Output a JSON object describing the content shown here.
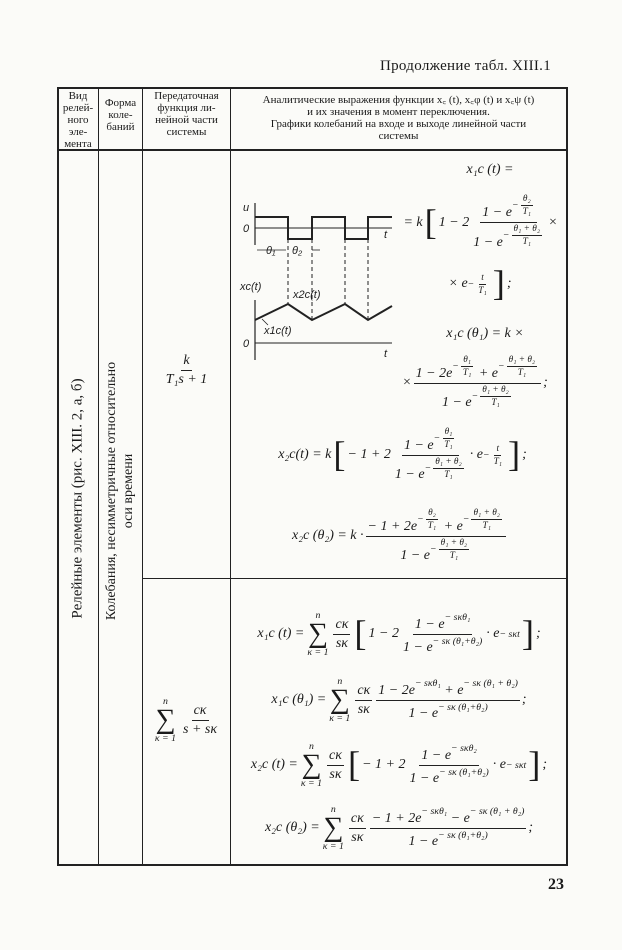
{
  "page": {
    "continuation_title": "Продолжение табл. XIII.1",
    "page_number": "23"
  },
  "table": {
    "headers": [
      "Вид релей-ного эле-мента",
      "Форма коле-баний",
      "Передаточная функция ли-нейной части системы",
      "Аналитические выражения функции x_c(t), x_cφ(t) и x_cψ(t) и их значения в момент переключения. Графики колебаний на входе и выходе линейной части системы"
    ],
    "header_lines": {
      "col1": [
        "Вид",
        "релей-",
        "ного",
        "эле-",
        "мента"
      ],
      "col2": [
        "Форма",
        "коле-",
        "баний"
      ],
      "col3": [
        "Передаточная",
        "функция ли-",
        "нейной части",
        "системы"
      ],
      "col4": [
        "Аналитические  выражения функции  x꜀ (t),  x꜀φ (t) и  x꜀ψ (t)",
        "и их значения в момент переключения.",
        "Графики колебаний на входе и выходе линейной части",
        "системы"
      ]
    },
    "element_type": "Релейные элементы (рис. XIII. 2, а, б)",
    "oscillation_form": [
      "Колебания, несимметричные относительно",
      "оси времени"
    ]
  },
  "graph": {
    "labels": {
      "u": "u",
      "zero_top": "0",
      "t_top": "t",
      "theta1": "θ₁",
      "theta2": "θ₂",
      "xc": "xc(t)",
      "x2c": "x2c(t)",
      "x1c": "x1c(t)",
      "zero_bottom": "0",
      "t_bottom": "t"
    }
  },
  "formulas": {
    "tf1": [
      {
        "f": [
          [
            "k"
          ],
          [
            "T₁s + 1"
          ]
        ]
      }
    ],
    "tf2": [
      {
        "sum": [
          "n",
          "κ = 1"
        ]
      },
      {
        "f": [
          [
            "cκ"
          ],
          [
            "s + sκ"
          ]
        ]
      }
    ],
    "f1a": [
      "x₁c (t) ="
    ],
    "f1b": [
      "= k",
      {
        "big": "["
      },
      "1 − 2 ",
      {
        "f": [
          [
            "1 − e",
            {
              "s": [
                "−",
                {
                  "f": [
                    [
                      "θ₂"
                    ],
                    [
                      "T₁"
                    ]
                  ]
                }
              ]
            }
          ],
          [
            "1 − e",
            {
              "s": [
                "−",
                {
                  "f": [
                    [
                      "θ₁ + θ₂"
                    ],
                    [
                      "T₁"
                    ]
                  ]
                }
              ]
            }
          ]
        ]
      },
      "×"
    ],
    "f1c": [
      "× e",
      {
        "s": [
          "−",
          {
            "f": [
              [
                "t"
              ],
              [
                "T₁"
              ]
            ]
          }
        ]
      },
      {
        "big": "]"
      },
      ";"
    ],
    "f2a": [
      "x₁c (θ₁) = k ×"
    ],
    "f2b": [
      "× ",
      {
        "f": [
          [
            "1 − 2e",
            {
              "s": [
                "−",
                {
                  "f": [
                    [
                      "θ₁"
                    ],
                    [
                      "T₁"
                    ]
                  ]
                }
              ]
            },
            " + e",
            {
              "s": [
                "−",
                {
                  "f": [
                    [
                      "θ₁ + θ₂"
                    ],
                    [
                      "T₁"
                    ]
                  ]
                }
              ]
            }
          ],
          [
            "1 − e",
            {
              "s": [
                "−",
                {
                  "f": [
                    [
                      "θ₁ + θ₂"
                    ],
                    [
                      "T₁"
                    ]
                  ]
                }
              ]
            }
          ]
        ]
      },
      " ;"
    ],
    "f3": [
      "x₂c(t) = k",
      {
        "big": "["
      },
      "− 1 + 2",
      {
        "f": [
          [
            "1 − e",
            {
              "s": [
                "−",
                {
                  "f": [
                    [
                      "θ₁"
                    ],
                    [
                      "T₁"
                    ]
                  ]
                }
              ]
            }
          ],
          [
            "1 − e",
            {
              "s": [
                "−",
                {
                  "f": [
                    [
                      "θ₁ + θ₂"
                    ],
                    [
                      "T₁"
                    ]
                  ]
                }
              ]
            }
          ]
        ]
      },
      " · e",
      {
        "s": [
          "−",
          {
            "f": [
              [
                "t"
              ],
              [
                "T₁"
              ]
            ]
          }
        ]
      },
      {
        "big": "]"
      },
      " ;"
    ],
    "f4": [
      "x₂c (θ₂) = k · ",
      {
        "f": [
          [
            "− 1 + 2e",
            {
              "s": [
                "−",
                {
                  "f": [
                    [
                      "θ₂"
                    ],
                    [
                      "T₁"
                    ]
                  ]
                }
              ]
            },
            " + e",
            {
              "s": [
                "−",
                {
                  "f": [
                    [
                      "θ₁ + θ₂"
                    ],
                    [
                      "T₁"
                    ]
                  ]
                }
              ]
            }
          ],
          [
            "1 − e",
            {
              "s": [
                "−",
                {
                  "f": [
                    [
                      "θ₁ + θ₂"
                    ],
                    [
                      "T₁"
                    ]
                  ]
                }
              ]
            }
          ]
        ]
      }
    ],
    "g1": [
      "x₁c (t) = ",
      {
        "sum": [
          "n",
          "κ = 1"
        ]
      },
      {
        "f": [
          [
            "cκ"
          ],
          [
            "sκ"
          ]
        ]
      },
      {
        "big": "["
      },
      "1 − 2 ",
      {
        "f": [
          [
            "1 − e",
            {
              "s": [
                "− sκθ₁"
              ]
            }
          ],
          [
            "1 − e",
            {
              "s": [
                "− sκ (θ₁+θ₂)"
              ]
            }
          ]
        ]
      },
      " · e",
      {
        "s": [
          "− sκt"
        ]
      },
      {
        "big": "]"
      },
      " ;"
    ],
    "g2": [
      "x₁c (θ₁) = ",
      {
        "sum": [
          "n",
          "κ = 1"
        ]
      },
      {
        "f": [
          [
            "cκ"
          ],
          [
            "sκ"
          ]
        ]
      },
      {
        "f": [
          [
            "1 − 2e",
            {
              "s": [
                "− sκθ₁"
              ]
            },
            " + e",
            {
              "s": [
                "− sκ (θ₁ + θ₂)"
              ]
            }
          ],
          [
            "1 − e",
            {
              "s": [
                "− sκ (θ₁+θ₂)"
              ]
            }
          ]
        ]
      },
      " ;"
    ],
    "g3": [
      "x₂c (t) = ",
      {
        "sum": [
          "n",
          "κ = 1"
        ]
      },
      {
        "f": [
          [
            "cκ"
          ],
          [
            "sκ"
          ]
        ]
      },
      {
        "big": "["
      },
      "− 1 + 2 ",
      {
        "f": [
          [
            "1 − e",
            {
              "s": [
                "− sκθ₂"
              ]
            }
          ],
          [
            "1 − e",
            {
              "s": [
                "− sκ (θ₁+θ₂)"
              ]
            }
          ]
        ]
      },
      "· e",
      {
        "s": [
          "− sκt"
        ]
      },
      {
        "big": "]"
      },
      " ;"
    ],
    "g4": [
      "x₂c (θ₂) = ",
      {
        "sum": [
          "n",
          "κ = 1"
        ]
      },
      {
        "f": [
          [
            "cκ"
          ],
          [
            "sκ"
          ]
        ]
      },
      {
        "f": [
          [
            "− 1 + 2e",
            {
              "s": [
                "− sκθ₁"
              ]
            },
            " − e",
            {
              "s": [
                "− sκ (θ₁ + θ₂)"
              ]
            }
          ],
          [
            "1 − e",
            {
              "s": [
                "− sκ (θ₁+θ₂)"
              ]
            }
          ]
        ]
      },
      " ;"
    ]
  }
}
